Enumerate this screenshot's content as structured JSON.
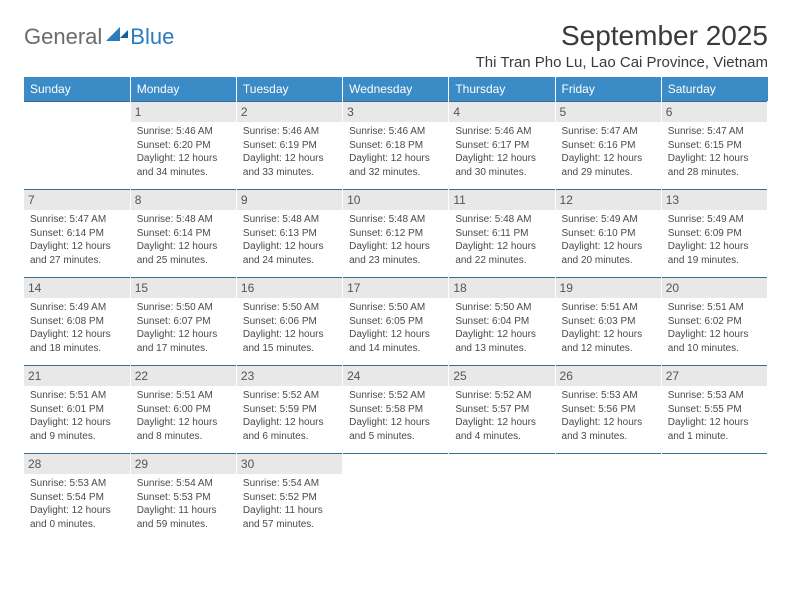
{
  "logo": {
    "general": "General",
    "blue": "Blue"
  },
  "header": {
    "month_title": "September 2025",
    "location": "Thi Tran Pho Lu, Lao Cai Province, Vietnam"
  },
  "style": {
    "header_bg": "#3b8bc6",
    "row_border": "#3b6d92",
    "daynum_bg": "#e8e8e8",
    "text_color": "#4a4a4a"
  },
  "days_of_week": [
    "Sunday",
    "Monday",
    "Tuesday",
    "Wednesday",
    "Thursday",
    "Friday",
    "Saturday"
  ],
  "weeks": [
    [
      null,
      {
        "n": "1",
        "sr": "Sunrise: 5:46 AM",
        "ss": "Sunset: 6:20 PM",
        "d1": "Daylight: 12 hours",
        "d2": "and 34 minutes."
      },
      {
        "n": "2",
        "sr": "Sunrise: 5:46 AM",
        "ss": "Sunset: 6:19 PM",
        "d1": "Daylight: 12 hours",
        "d2": "and 33 minutes."
      },
      {
        "n": "3",
        "sr": "Sunrise: 5:46 AM",
        "ss": "Sunset: 6:18 PM",
        "d1": "Daylight: 12 hours",
        "d2": "and 32 minutes."
      },
      {
        "n": "4",
        "sr": "Sunrise: 5:46 AM",
        "ss": "Sunset: 6:17 PM",
        "d1": "Daylight: 12 hours",
        "d2": "and 30 minutes."
      },
      {
        "n": "5",
        "sr": "Sunrise: 5:47 AM",
        "ss": "Sunset: 6:16 PM",
        "d1": "Daylight: 12 hours",
        "d2": "and 29 minutes."
      },
      {
        "n": "6",
        "sr": "Sunrise: 5:47 AM",
        "ss": "Sunset: 6:15 PM",
        "d1": "Daylight: 12 hours",
        "d2": "and 28 minutes."
      }
    ],
    [
      {
        "n": "7",
        "sr": "Sunrise: 5:47 AM",
        "ss": "Sunset: 6:14 PM",
        "d1": "Daylight: 12 hours",
        "d2": "and 27 minutes."
      },
      {
        "n": "8",
        "sr": "Sunrise: 5:48 AM",
        "ss": "Sunset: 6:14 PM",
        "d1": "Daylight: 12 hours",
        "d2": "and 25 minutes."
      },
      {
        "n": "9",
        "sr": "Sunrise: 5:48 AM",
        "ss": "Sunset: 6:13 PM",
        "d1": "Daylight: 12 hours",
        "d2": "and 24 minutes."
      },
      {
        "n": "10",
        "sr": "Sunrise: 5:48 AM",
        "ss": "Sunset: 6:12 PM",
        "d1": "Daylight: 12 hours",
        "d2": "and 23 minutes."
      },
      {
        "n": "11",
        "sr": "Sunrise: 5:48 AM",
        "ss": "Sunset: 6:11 PM",
        "d1": "Daylight: 12 hours",
        "d2": "and 22 minutes."
      },
      {
        "n": "12",
        "sr": "Sunrise: 5:49 AM",
        "ss": "Sunset: 6:10 PM",
        "d1": "Daylight: 12 hours",
        "d2": "and 20 minutes."
      },
      {
        "n": "13",
        "sr": "Sunrise: 5:49 AM",
        "ss": "Sunset: 6:09 PM",
        "d1": "Daylight: 12 hours",
        "d2": "and 19 minutes."
      }
    ],
    [
      {
        "n": "14",
        "sr": "Sunrise: 5:49 AM",
        "ss": "Sunset: 6:08 PM",
        "d1": "Daylight: 12 hours",
        "d2": "and 18 minutes."
      },
      {
        "n": "15",
        "sr": "Sunrise: 5:50 AM",
        "ss": "Sunset: 6:07 PM",
        "d1": "Daylight: 12 hours",
        "d2": "and 17 minutes."
      },
      {
        "n": "16",
        "sr": "Sunrise: 5:50 AM",
        "ss": "Sunset: 6:06 PM",
        "d1": "Daylight: 12 hours",
        "d2": "and 15 minutes."
      },
      {
        "n": "17",
        "sr": "Sunrise: 5:50 AM",
        "ss": "Sunset: 6:05 PM",
        "d1": "Daylight: 12 hours",
        "d2": "and 14 minutes."
      },
      {
        "n": "18",
        "sr": "Sunrise: 5:50 AM",
        "ss": "Sunset: 6:04 PM",
        "d1": "Daylight: 12 hours",
        "d2": "and 13 minutes."
      },
      {
        "n": "19",
        "sr": "Sunrise: 5:51 AM",
        "ss": "Sunset: 6:03 PM",
        "d1": "Daylight: 12 hours",
        "d2": "and 12 minutes."
      },
      {
        "n": "20",
        "sr": "Sunrise: 5:51 AM",
        "ss": "Sunset: 6:02 PM",
        "d1": "Daylight: 12 hours",
        "d2": "and 10 minutes."
      }
    ],
    [
      {
        "n": "21",
        "sr": "Sunrise: 5:51 AM",
        "ss": "Sunset: 6:01 PM",
        "d1": "Daylight: 12 hours",
        "d2": "and 9 minutes."
      },
      {
        "n": "22",
        "sr": "Sunrise: 5:51 AM",
        "ss": "Sunset: 6:00 PM",
        "d1": "Daylight: 12 hours",
        "d2": "and 8 minutes."
      },
      {
        "n": "23",
        "sr": "Sunrise: 5:52 AM",
        "ss": "Sunset: 5:59 PM",
        "d1": "Daylight: 12 hours",
        "d2": "and 6 minutes."
      },
      {
        "n": "24",
        "sr": "Sunrise: 5:52 AM",
        "ss": "Sunset: 5:58 PM",
        "d1": "Daylight: 12 hours",
        "d2": "and 5 minutes."
      },
      {
        "n": "25",
        "sr": "Sunrise: 5:52 AM",
        "ss": "Sunset: 5:57 PM",
        "d1": "Daylight: 12 hours",
        "d2": "and 4 minutes."
      },
      {
        "n": "26",
        "sr": "Sunrise: 5:53 AM",
        "ss": "Sunset: 5:56 PM",
        "d1": "Daylight: 12 hours",
        "d2": "and 3 minutes."
      },
      {
        "n": "27",
        "sr": "Sunrise: 5:53 AM",
        "ss": "Sunset: 5:55 PM",
        "d1": "Daylight: 12 hours",
        "d2": "and 1 minute."
      }
    ],
    [
      {
        "n": "28",
        "sr": "Sunrise: 5:53 AM",
        "ss": "Sunset: 5:54 PM",
        "d1": "Daylight: 12 hours",
        "d2": "and 0 minutes."
      },
      {
        "n": "29",
        "sr": "Sunrise: 5:54 AM",
        "ss": "Sunset: 5:53 PM",
        "d1": "Daylight: 11 hours",
        "d2": "and 59 minutes."
      },
      {
        "n": "30",
        "sr": "Sunrise: 5:54 AM",
        "ss": "Sunset: 5:52 PM",
        "d1": "Daylight: 11 hours",
        "d2": "and 57 minutes."
      },
      null,
      null,
      null,
      null
    ]
  ]
}
